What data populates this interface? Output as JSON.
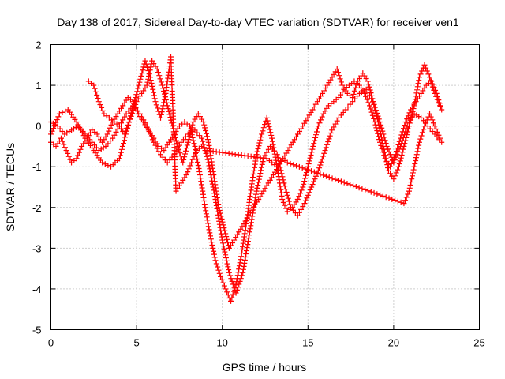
{
  "chart_data": {
    "type": "scatter",
    "title": "Day 138 of 2017, Sidereal Day-to-day VTEC variation (SDTVAR) for receiver ven1",
    "xlabel": "GPS time / hours",
    "ylabel": "SDTVAR / TECUs",
    "xlim": [
      0,
      25
    ],
    "ylim": [
      -5,
      2
    ],
    "xticks": [
      "0",
      "5",
      "10",
      "15",
      "20",
      "25"
    ],
    "yticks": [
      "-5",
      "-4",
      "-3",
      "-2",
      "-1",
      "0",
      "1",
      "2"
    ],
    "grid": true,
    "marker": "+",
    "color": "#ff0000",
    "series": [
      {
        "x": [
          0.0,
          0.3,
          0.6,
          0.9,
          1.2,
          1.5,
          1.8,
          2.1,
          2.4,
          2.7,
          3.0,
          3.3,
          3.6,
          3.9,
          4.2,
          4.5,
          4.8,
          5.1,
          5.4,
          5.7,
          6.0,
          6.3,
          6.6,
          6.9,
          7.2,
          7.5,
          7.8,
          8.1,
          8.4,
          8.7,
          9.0,
          9.3,
          9.6,
          9.9,
          10.2,
          10.5,
          10.8,
          11.1,
          11.4,
          11.7,
          12.0,
          12.3,
          12.6,
          12.9,
          13.2,
          13.5,
          13.8,
          14.1,
          14.4,
          14.7,
          15.0,
          15.3,
          15.6,
          15.9,
          16.2,
          16.5,
          16.8,
          17.1,
          17.4,
          17.7,
          18.0,
          18.3,
          18.6,
          18.9,
          19.2,
          19.5,
          19.8,
          20.1,
          20.4,
          20.7,
          21.0,
          21.3,
          21.6,
          21.9,
          22.2,
          22.5,
          22.8
        ],
        "y": [
          -0.4,
          -0.5,
          -0.3,
          -0.6,
          -0.9,
          -0.8,
          -0.5,
          -0.3,
          -0.1,
          -0.2,
          -0.4,
          -0.2,
          0.1,
          0.3,
          0.5,
          0.7,
          0.6,
          0.3,
          0.1,
          -0.1,
          -0.3,
          -0.5,
          -0.6,
          -0.4,
          -0.2,
          0.0,
          0.1,
          0.0,
          -0.5,
          -1.2,
          -2.0,
          -2.7,
          -3.3,
          -3.7,
          -4.0,
          -4.3,
          -3.9,
          -3.2,
          -2.4,
          -1.5,
          -0.7,
          -0.2,
          0.2,
          -0.3,
          -1.0,
          -1.8,
          -2.1,
          -2.0,
          -1.8,
          -1.5,
          -1.0,
          -0.5,
          0.0,
          0.3,
          0.5,
          0.6,
          0.7,
          0.9,
          1.0,
          1.1,
          1.0,
          0.8,
          0.5,
          0.1,
          -0.4,
          -0.8,
          -1.0,
          -0.7,
          -0.3,
          0.1,
          0.4,
          0.6,
          0.8,
          1.0,
          1.1,
          0.8,
          0.4
        ]
      },
      {
        "x": [
          0.0,
          0.4,
          0.8,
          1.2,
          1.6,
          2.0,
          2.4,
          2.8,
          3.2,
          3.6,
          4.0,
          4.4,
          4.8,
          5.2,
          5.6,
          6.0,
          6.4,
          6.8,
          7.2,
          7.6,
          8.0,
          8.4,
          8.8,
          9.2,
          9.6,
          10.0,
          10.4,
          10.8,
          11.2,
          11.6,
          12.0,
          12.4,
          12.8,
          13.2,
          13.6,
          14.0,
          14.4,
          14.8,
          15.2,
          15.6,
          16.0,
          16.4,
          16.8,
          17.2,
          17.6,
          18.0,
          18.4,
          18.8,
          19.2,
          19.6,
          20.0,
          20.4,
          20.8,
          21.2,
          21.6,
          22.0,
          22.4,
          22.8
        ],
        "y": [
          0.1,
          0.0,
          -0.2,
          -0.1,
          0.0,
          -0.2,
          -0.4,
          -0.6,
          -0.5,
          -0.3,
          0.0,
          0.3,
          0.5,
          0.3,
          0.0,
          -0.4,
          -0.7,
          -0.9,
          -0.7,
          -0.4,
          -0.2,
          -0.1,
          -0.3,
          -0.9,
          -1.8,
          -2.8,
          -3.6,
          -4.1,
          -3.6,
          -2.6,
          -1.6,
          -0.8,
          -0.5,
          -0.7,
          -1.4,
          -2.0,
          -2.2,
          -1.9,
          -1.5,
          -1.1,
          -0.6,
          -0.1,
          0.2,
          0.4,
          0.6,
          0.8,
          0.9,
          0.6,
          0.1,
          -0.5,
          -0.9,
          -0.5,
          0.0,
          0.3,
          0.2,
          0.0,
          -0.2,
          -0.4
        ]
      },
      {
        "x": [
          2.2,
          2.5,
          2.8,
          3.1,
          3.4,
          3.7,
          4.0,
          4.3,
          5.0,
          5.3,
          5.6,
          5.9,
          6.2,
          6.5,
          6.8,
          7.1,
          7.4,
          7.7,
          8.0,
          8.3,
          8.6,
          8.9,
          9.2,
          9.5,
          9.8,
          10.1,
          10.4,
          16.7,
          17.0,
          17.3,
          17.6,
          17.9,
          18.2,
          18.5,
          18.8,
          19.1,
          19.4,
          19.7,
          20.0,
          20.3,
          20.6,
          20.9,
          21.2,
          21.5,
          21.8,
          22.1,
          22.4,
          22.7
        ],
        "y": [
          1.1,
          1.0,
          0.6,
          0.3,
          0.2,
          0.1,
          0.0,
          -0.2,
          0.6,
          0.8,
          1.0,
          1.6,
          1.4,
          1.0,
          0.5,
          0.0,
          -0.5,
          -0.9,
          -0.4,
          0.1,
          0.3,
          0.1,
          -0.4,
          -1.2,
          -2.0,
          -2.5,
          -3.0,
          1.4,
          1.0,
          0.8,
          0.7,
          1.1,
          1.3,
          1.1,
          0.6,
          0.1,
          -0.5,
          -1.1,
          -1.3,
          -1.0,
          -0.5,
          0.0,
          0.5,
          1.2,
          1.5,
          1.2,
          0.8,
          0.5
        ]
      },
      {
        "x": [
          0.0,
          0.5,
          1.0,
          1.5,
          2.0,
          2.5,
          3.0,
          3.5,
          4.0,
          5.5,
          5.8,
          6.1,
          6.4,
          6.7,
          7.0,
          7.3,
          7.6,
          7.9,
          8.2,
          8.5,
          8.8,
          9.1,
          12.6,
          12.9,
          13.2,
          13.5,
          13.8,
          20.6,
          20.9,
          21.2,
          21.5,
          21.8,
          22.1,
          22.4,
          22.7
        ],
        "y": [
          -0.2,
          0.3,
          0.4,
          0.1,
          -0.3,
          -0.6,
          -0.9,
          -1.0,
          -0.8,
          1.6,
          1.2,
          0.6,
          0.2,
          0.8,
          1.7,
          -1.6,
          -1.4,
          -1.2,
          -0.9,
          -0.6,
          -0.5,
          -0.6,
          -0.8,
          -0.9,
          -1.0,
          -0.8,
          -0.9,
          -1.9,
          -1.6,
          -1.0,
          -0.4,
          0.0,
          0.3,
          0.0,
          -0.3
        ]
      }
    ]
  }
}
